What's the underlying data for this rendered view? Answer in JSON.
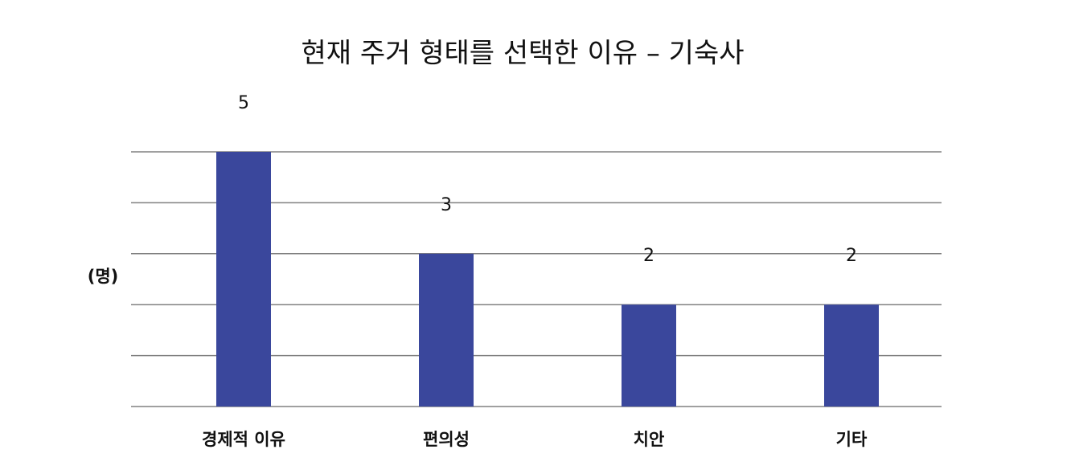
{
  "chart_data": {
    "type": "bar",
    "title": "현재 주거 형태를 선택한 이유 – 기숙사",
    "y_label": "(명)",
    "categories": [
      "경제적 이유",
      "편의성",
      "치안",
      "기타"
    ],
    "values": [
      5,
      3,
      2,
      2
    ],
    "color": "#3a479c",
    "ylim": [
      0,
      5
    ],
    "yticks": [
      0,
      1,
      2,
      3,
      4,
      5
    ],
    "grid": true,
    "show_tick_labels": false
  }
}
